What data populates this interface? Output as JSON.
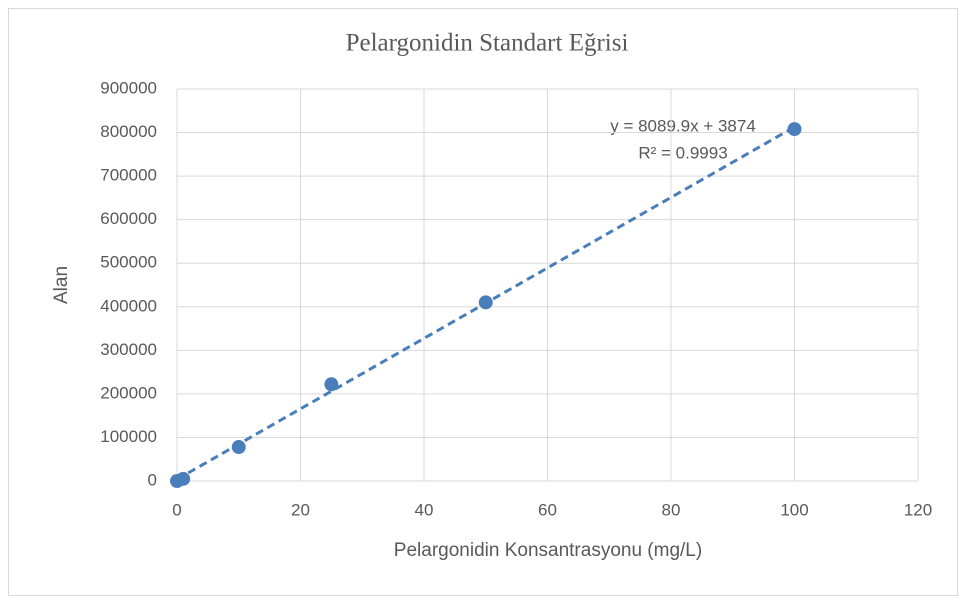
{
  "chart_data": {
    "type": "scatter",
    "title": "Pelargonidin Standart Eğrisi",
    "x_label": "Pelargonidin Konsantrasyonu (mg/L)",
    "y_label": "Alan",
    "x": [
      0,
      1,
      10,
      25,
      50,
      100
    ],
    "values": [
      0,
      5000,
      78000,
      222000,
      410000,
      808000
    ],
    "color": "#4a7ebb",
    "xlim": [
      0,
      120
    ],
    "xticks": [
      0,
      20,
      40,
      60,
      80,
      100,
      120
    ],
    "ylim": [
      0,
      900000
    ],
    "yticks": [
      0,
      100000,
      200000,
      300000,
      400000,
      500000,
      600000,
      700000,
      800000,
      900000
    ],
    "grid": true,
    "trendline": {
      "slope": 8089.9,
      "intercept": 3874,
      "style": "dashed",
      "label": "y = 8089.9x + 3874",
      "r2_label": "R² = 0.9993"
    }
  }
}
